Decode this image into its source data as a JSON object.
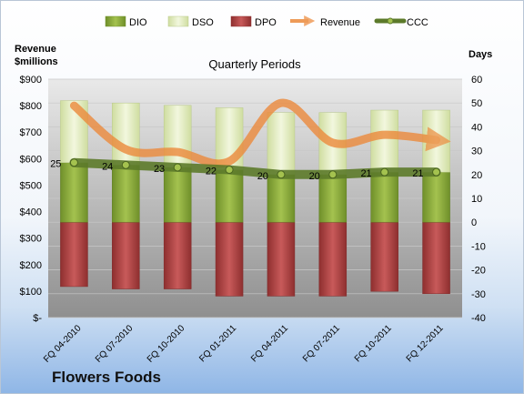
{
  "chart_data": {
    "type": "bar",
    "company": "Flowers Foods",
    "subtitle": "Quarterly Periods",
    "left_axis_label_line1": "Revenue",
    "left_axis_label_line2": "$millions",
    "right_axis_label": "Days",
    "categories": [
      "FQ 04-2010",
      "FQ 07-2010",
      "FQ 10-2010",
      "FQ 01-2011",
      "FQ 04-2011",
      "FQ 07-2011",
      "FQ 10-2011",
      "FQ 12-2011"
    ],
    "legend": [
      "DIO",
      "DSO",
      "DPO",
      "Revenue",
      "CCC"
    ],
    "left_ticks": [
      "$-",
      "$100",
      "$200",
      "$300",
      "$400",
      "$500",
      "$600",
      "$700",
      "$800",
      "$900"
    ],
    "right_ticks": [
      "-40",
      "-30",
      "-20",
      "-10",
      "0",
      "10",
      "20",
      "30",
      "40",
      "50",
      "60"
    ],
    "ylim_days": [
      -40,
      60
    ],
    "ylim_revenue": [
      0,
      900
    ],
    "series": [
      {
        "name": "DIO",
        "color": "#8fae3c",
        "values": [
          25,
          24,
          23,
          22,
          20,
          20,
          21,
          21
        ]
      },
      {
        "name": "DSO",
        "color": "#e6f0c6",
        "values": [
          26,
          26,
          26,
          26,
          26,
          26,
          26,
          26
        ]
      },
      {
        "name": "DPO",
        "color": "#b84a4a",
        "values": [
          -27,
          -28,
          -28,
          -31,
          -31,
          -31,
          -29,
          -30
        ]
      },
      {
        "name": "Revenue",
        "color": "#ec8a3c",
        "values": [
          800,
          635,
          625,
          590,
          810,
          660,
          690,
          670
        ]
      },
      {
        "name": "CCC",
        "color": "#5c7a2a",
        "values": [
          25,
          24,
          23,
          22,
          20,
          20,
          21,
          21
        ]
      }
    ],
    "ccc_labels": [
      "25",
      "24",
      "23",
      "22",
      "20",
      "20",
      "21",
      "21"
    ]
  }
}
